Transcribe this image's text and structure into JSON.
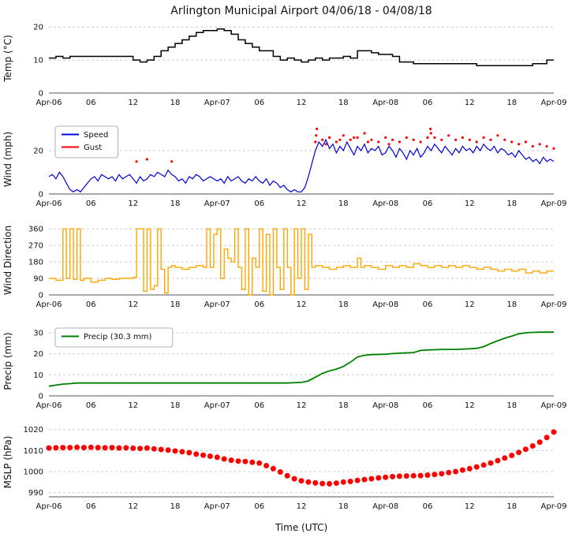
{
  "title": "Arlington Municipal Airport 04/06/18 - 04/08/18",
  "xlabel": "Time (UTC)",
  "x_axis": {
    "hours": [
      0,
      6,
      12,
      18,
      24,
      30,
      36,
      42,
      48,
      54,
      60,
      66,
      72
    ],
    "labels": [
      "Apr-06",
      "06",
      "12",
      "18",
      "Apr-07",
      "06",
      "12",
      "18",
      "Apr-08",
      "06",
      "12",
      "18",
      "Apr-09"
    ]
  },
  "chart_data": [
    {
      "type": "line",
      "name": "temperature",
      "ylabel": "Temp (°C)",
      "ylim": [
        0,
        21
      ],
      "yticks": [
        0,
        10,
        20
      ],
      "color": "#000000",
      "step": true,
      "width": 1.5,
      "x_start": 0,
      "x_step": 1,
      "values": [
        10.6,
        11.1,
        10.6,
        11.1,
        11.1,
        11.1,
        11.1,
        11.1,
        11.1,
        11.1,
        11.1,
        11.1,
        10.0,
        9.4,
        10.0,
        11.1,
        12.8,
        13.9,
        15.0,
        16.1,
        17.2,
        18.3,
        18.9,
        18.9,
        19.4,
        18.9,
        17.8,
        16.1,
        15.0,
        13.9,
        12.8,
        12.8,
        11.1,
        10.0,
        10.6,
        10.0,
        9.4,
        10.0,
        10.6,
        10.0,
        10.6,
        10.6,
        11.1,
        10.6,
        12.8,
        12.8,
        12.2,
        11.7,
        11.7,
        11.1,
        9.4,
        9.4,
        8.9,
        8.9,
        8.9,
        8.9,
        8.9,
        8.9,
        8.9,
        8.9,
        8.9,
        8.3,
        8.3,
        8.3,
        8.3,
        8.3,
        8.3,
        8.3,
        8.3,
        8.9,
        8.9,
        10.0,
        10.0
      ]
    },
    {
      "type": "line",
      "name": "wind",
      "ylabel": "Wind (mph)",
      "ylim": [
        0,
        32
      ],
      "yticks": [
        0,
        20
      ],
      "legend": [
        {
          "label": "Speed",
          "color": "#0000dd"
        },
        {
          "label": "Gust",
          "color": "#ff0000"
        }
      ],
      "series": [
        {
          "name": "Speed",
          "color": "#0000dd",
          "width": 1.2,
          "x_start": 0,
          "x_step": 0.5,
          "values": [
            8,
            9,
            7,
            10,
            8,
            5,
            2,
            1,
            2,
            1,
            3,
            5,
            7,
            8,
            6,
            9,
            8,
            7,
            8,
            6,
            9,
            7,
            8,
            9,
            7,
            5,
            8,
            6,
            7,
            9,
            8,
            10,
            9,
            8,
            11,
            9,
            8,
            6,
            7,
            5,
            8,
            7,
            9,
            8,
            6,
            7,
            8,
            7,
            6,
            7,
            5,
            8,
            6,
            7,
            8,
            6,
            5,
            7,
            6,
            8,
            6,
            5,
            7,
            4,
            6,
            5,
            3,
            4,
            2,
            1,
            2,
            1,
            1,
            3,
            8,
            14,
            20,
            24,
            22,
            25,
            21,
            23,
            19,
            22,
            20,
            24,
            21,
            18,
            22,
            20,
            23,
            19,
            21,
            20,
            22,
            18,
            19,
            22,
            20,
            17,
            21,
            19,
            16,
            20,
            18,
            21,
            17,
            19,
            22,
            20,
            23,
            21,
            19,
            22,
            20,
            18,
            21,
            19,
            22,
            20,
            21,
            19,
            22,
            20,
            23,
            21,
            20,
            22,
            19,
            21,
            20,
            18,
            19,
            17,
            20,
            18,
            16,
            17,
            15,
            16,
            14,
            17,
            15,
            16,
            15
          ]
        },
        {
          "name": "Gust",
          "color": "#ff0000",
          "type": "scatter",
          "r": 1.6,
          "points": [
            [
              12.5,
              15
            ],
            [
              14,
              16
            ],
            [
              17.5,
              15
            ],
            [
              38,
              24
            ],
            [
              38.1,
              27
            ],
            [
              38.2,
              30
            ],
            [
              39,
              25
            ],
            [
              39.5,
              23
            ],
            [
              40,
              26
            ],
            [
              41,
              24
            ],
            [
              41.5,
              25
            ],
            [
              42,
              27
            ],
            [
              43,
              25
            ],
            [
              43.5,
              26
            ],
            [
              44,
              26
            ],
            [
              45,
              28
            ],
            [
              45.5,
              24
            ],
            [
              46,
              25
            ],
            [
              47,
              24
            ],
            [
              48,
              26
            ],
            [
              48.5,
              23
            ],
            [
              49,
              25
            ],
            [
              50,
              24
            ],
            [
              51,
              26
            ],
            [
              52,
              25
            ],
            [
              53,
              24
            ],
            [
              54,
              26
            ],
            [
              54.4,
              30
            ],
            [
              54.5,
              28
            ],
            [
              55,
              26
            ],
            [
              56,
              25
            ],
            [
              57,
              27
            ],
            [
              58,
              25
            ],
            [
              59,
              26
            ],
            [
              60,
              25
            ],
            [
              61,
              24
            ],
            [
              62,
              26
            ],
            [
              63,
              25
            ],
            [
              64,
              27
            ],
            [
              65,
              25
            ],
            [
              66,
              24
            ],
            [
              67,
              23
            ],
            [
              68,
              24
            ],
            [
              69,
              22
            ],
            [
              70,
              23
            ],
            [
              71,
              22
            ],
            [
              72,
              21
            ]
          ]
        }
      ]
    },
    {
      "type": "line",
      "name": "wind-direction",
      "ylabel": "Wind Direction",
      "ylim": [
        0,
        378
      ],
      "yticks": [
        0,
        90,
        180,
        270,
        360
      ],
      "color": "#ffa500",
      "step": true,
      "width": 1.4,
      "points": [
        [
          0,
          90
        ],
        [
          1,
          80
        ],
        [
          2,
          360
        ],
        [
          2.5,
          90
        ],
        [
          3,
          360
        ],
        [
          3.5,
          85
        ],
        [
          4,
          360
        ],
        [
          4.5,
          80
        ],
        [
          5,
          90
        ],
        [
          6,
          70
        ],
        [
          7,
          80
        ],
        [
          8,
          90
        ],
        [
          9,
          85
        ],
        [
          10,
          90
        ],
        [
          11,
          90
        ],
        [
          12,
          95
        ],
        [
          12.5,
          360
        ],
        [
          13,
          360
        ],
        [
          13.5,
          20
        ],
        [
          14,
          360
        ],
        [
          14.5,
          30
        ],
        [
          15,
          50
        ],
        [
          15.5,
          360
        ],
        [
          16,
          140
        ],
        [
          16.5,
          10
        ],
        [
          17,
          150
        ],
        [
          17.5,
          160
        ],
        [
          18,
          150
        ],
        [
          19,
          140
        ],
        [
          20,
          150
        ],
        [
          21,
          160
        ],
        [
          22,
          150
        ],
        [
          22.5,
          360
        ],
        [
          23,
          150
        ],
        [
          23.5,
          330
        ],
        [
          24,
          360
        ],
        [
          24.5,
          90
        ],
        [
          25,
          250
        ],
        [
          25.5,
          200
        ],
        [
          26,
          180
        ],
        [
          26.5,
          360
        ],
        [
          27,
          150
        ],
        [
          27.5,
          30
        ],
        [
          28,
          360
        ],
        [
          28.5,
          0
        ],
        [
          29,
          200
        ],
        [
          29.5,
          150
        ],
        [
          30,
          360
        ],
        [
          30.5,
          20
        ],
        [
          31,
          330
        ],
        [
          31.5,
          0
        ],
        [
          32,
          360
        ],
        [
          32.5,
          150
        ],
        [
          33,
          30
        ],
        [
          33.5,
          360
        ],
        [
          34,
          150
        ],
        [
          34.5,
          0
        ],
        [
          35,
          360
        ],
        [
          35.5,
          90
        ],
        [
          36,
          360
        ],
        [
          36.5,
          30
        ],
        [
          37,
          330
        ],
        [
          37.5,
          150
        ],
        [
          38,
          160
        ],
        [
          39,
          150
        ],
        [
          40,
          140
        ],
        [
          41,
          150
        ],
        [
          42,
          160
        ],
        [
          43,
          150
        ],
        [
          44,
          200
        ],
        [
          44.5,
          150
        ],
        [
          45,
          160
        ],
        [
          46,
          150
        ],
        [
          47,
          140
        ],
        [
          48,
          160
        ],
        [
          49,
          150
        ],
        [
          50,
          160
        ],
        [
          51,
          150
        ],
        [
          52,
          170
        ],
        [
          53,
          160
        ],
        [
          54,
          150
        ],
        [
          55,
          160
        ],
        [
          56,
          150
        ],
        [
          57,
          160
        ],
        [
          58,
          150
        ],
        [
          59,
          160
        ],
        [
          60,
          150
        ],
        [
          61,
          140
        ],
        [
          62,
          150
        ],
        [
          63,
          140
        ],
        [
          64,
          130
        ],
        [
          65,
          140
        ],
        [
          66,
          130
        ],
        [
          67,
          140
        ],
        [
          68,
          120
        ],
        [
          69,
          130
        ],
        [
          70,
          120
        ],
        [
          71,
          130
        ],
        [
          72,
          130
        ]
      ]
    },
    {
      "type": "line",
      "name": "precipitation",
      "ylabel": "Precip (mm)",
      "ylim": [
        0,
        33
      ],
      "yticks": [
        0,
        10,
        20,
        30
      ],
      "color": "#008000",
      "width": 1.8,
      "legend": [
        {
          "label": "Precip (30.3 mm)",
          "color": "#008000"
        }
      ],
      "points": [
        [
          0,
          4.6
        ],
        [
          1,
          5.1
        ],
        [
          2,
          5.6
        ],
        [
          3,
          5.8
        ],
        [
          4,
          6.1
        ],
        [
          6,
          6.1
        ],
        [
          12,
          6.1
        ],
        [
          24,
          6.1
        ],
        [
          30,
          6.1
        ],
        [
          34,
          6.1
        ],
        [
          36,
          6.4
        ],
        [
          37,
          7.1
        ],
        [
          38,
          8.9
        ],
        [
          39,
          10.7
        ],
        [
          40,
          11.9
        ],
        [
          41,
          12.7
        ],
        [
          42,
          14.0
        ],
        [
          43,
          16.0
        ],
        [
          44,
          18.5
        ],
        [
          45,
          19.3
        ],
        [
          46,
          19.6
        ],
        [
          48,
          19.8
        ],
        [
          49,
          20.1
        ],
        [
          50,
          20.3
        ],
        [
          52,
          20.6
        ],
        [
          53,
          21.6
        ],
        [
          54,
          21.8
        ],
        [
          56,
          22.1
        ],
        [
          58,
          22.1
        ],
        [
          60,
          22.4
        ],
        [
          61,
          22.6
        ],
        [
          62,
          23.4
        ],
        [
          63,
          24.9
        ],
        [
          64,
          26.2
        ],
        [
          65,
          27.4
        ],
        [
          66,
          28.4
        ],
        [
          67,
          29.5
        ],
        [
          68,
          30.0
        ],
        [
          69,
          30.2
        ],
        [
          70,
          30.3
        ],
        [
          72,
          30.3
        ]
      ]
    },
    {
      "type": "scatter",
      "name": "mslp",
      "ylabel": "MSLP (hPa)",
      "ylim": [
        988,
        1021
      ],
      "yticks": [
        990,
        1000,
        1010,
        1020
      ],
      "color": "#ff0000",
      "r": 3.5,
      "x_start": 0,
      "x_step": 1,
      "values": [
        1011.2,
        1011.3,
        1011.4,
        1011.4,
        1011.5,
        1011.4,
        1011.5,
        1011.4,
        1011.3,
        1011.4,
        1011.2,
        1011.3,
        1011.1,
        1011.0,
        1011.2,
        1010.8,
        1010.5,
        1010.2,
        1009.8,
        1009.4,
        1009.0,
        1008.3,
        1007.8,
        1007.3,
        1006.8,
        1006.0,
        1005.4,
        1005.0,
        1004.8,
        1004.4,
        1004.0,
        1002.8,
        1001.4,
        999.8,
        998.0,
        996.6,
        995.6,
        995.0,
        994.6,
        994.3,
        994.2,
        994.5,
        995.0,
        995.3,
        995.8,
        996.2,
        996.6,
        997.0,
        997.3,
        997.6,
        997.8,
        997.9,
        998.0,
        998.1,
        998.3,
        998.6,
        999.0,
        999.5,
        1000.0,
        1000.7,
        1001.4,
        1002.2,
        1003.1,
        1004.1,
        1005.2,
        1006.4,
        1007.7,
        1009.1,
        1010.6,
        1012.2,
        1014.0,
        1016.2,
        1018.8
      ]
    }
  ]
}
